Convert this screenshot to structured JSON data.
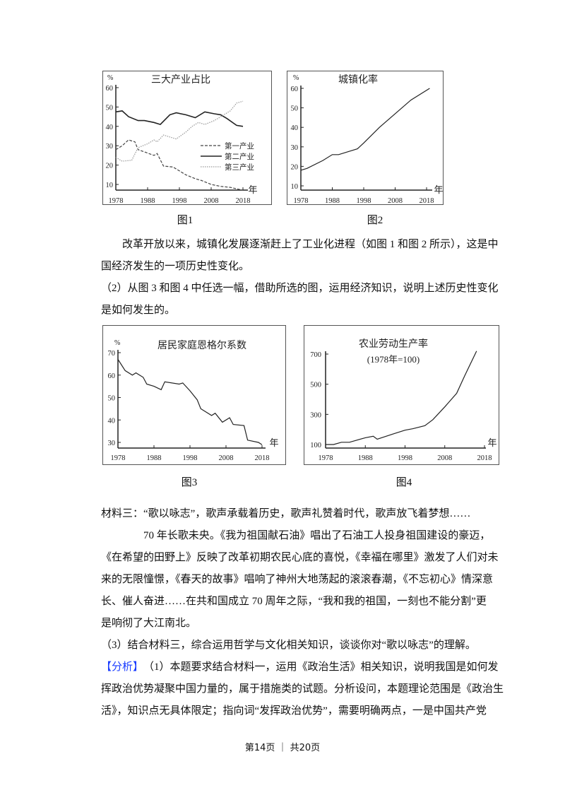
{
  "chart_data": [
    {
      "type": "line",
      "title": "三大产业占比",
      "ylabel": "%",
      "xlabel": "年",
      "xticks": [
        1978,
        1988,
        1998,
        2008,
        2018
      ],
      "yticks": [
        10,
        20,
        30,
        40,
        50,
        60
      ],
      "xlim": [
        1978,
        2018
      ],
      "ylim": [
        10,
        60
      ],
      "legend": "right",
      "series": [
        {
          "name": "第一产业",
          "style": "dashed",
          "color": "#444444",
          "x": [
            1978,
            1980,
            1982,
            1984,
            1985,
            1990,
            1991,
            1993,
            1996,
            1998,
            2000,
            2003,
            2005,
            2008,
            2011,
            2014,
            2018
          ],
          "y": [
            28,
            30,
            33,
            32,
            28,
            25,
            26,
            19.5,
            19,
            17,
            15,
            13,
            12,
            10,
            9,
            8.5,
            7
          ]
        },
        {
          "name": "第二产业",
          "style": "solid",
          "color": "#222222",
          "x": [
            1978,
            1980,
            1982,
            1985,
            1987,
            1990,
            1992,
            1995,
            1997,
            2000,
            2003,
            2006,
            2009,
            2011,
            2013,
            2016,
            2018
          ],
          "y": [
            47.5,
            48,
            45,
            43,
            43,
            42,
            41,
            46,
            47,
            46,
            44.5,
            47.5,
            46.5,
            46,
            44,
            40.5,
            40
          ]
        },
        {
          "name": "第三产业",
          "style": "dotted",
          "color": "#999999",
          "x": [
            1978,
            1980,
            1983,
            1985,
            1988,
            1990,
            1991,
            1993,
            1997,
            2000,
            2002,
            2004,
            2006,
            2009,
            2012,
            2014,
            2016,
            2018
          ],
          "y": [
            24,
            22,
            22.5,
            29,
            31,
            33,
            32,
            35.5,
            33.5,
            37,
            40,
            42,
            41,
            43,
            46,
            48,
            52,
            53
          ]
        }
      ]
    },
    {
      "type": "line",
      "title": "城镇化率",
      "ylabel": "%",
      "xlabel": "年",
      "xticks": [
        1978,
        1988,
        1998,
        2008,
        2018
      ],
      "yticks": [
        10,
        20,
        30,
        40,
        50,
        60
      ],
      "xlim": [
        1978,
        2018
      ],
      "ylim": [
        10,
        60
      ],
      "series": [
        {
          "color": "#222222",
          "x": [
            1978,
            1980,
            1985,
            1988,
            1990,
            1994,
            1996,
            1998,
            2003,
            2008,
            2013,
            2019
          ],
          "y": [
            18,
            19,
            23,
            26,
            26,
            28,
            29,
            32,
            40,
            47,
            54,
            60
          ]
        }
      ]
    },
    {
      "type": "line",
      "title": "居民家庭恩格尔系数",
      "ylabel": "%",
      "xlabel": "年",
      "xticks": [
        1978,
        1988,
        1998,
        2008,
        2018
      ],
      "yticks": [
        30,
        40,
        50,
        60,
        70
      ],
      "xlim": [
        1978,
        2018
      ],
      "ylim": [
        30,
        70
      ],
      "series": [
        {
          "color": "#222222",
          "x": [
            1978,
            1980,
            1982,
            1983,
            1985,
            1986,
            1988,
            1990,
            1991,
            1995,
            1996,
            1998,
            2000,
            2001,
            2004,
            2005,
            2007,
            2009,
            2010,
            2013,
            2014,
            2017,
            2018
          ],
          "y": [
            67,
            62,
            60,
            61,
            59,
            56,
            55,
            53.5,
            57,
            56,
            56.5,
            53,
            49,
            45,
            42,
            43,
            39,
            41,
            38,
            37.5,
            31,
            30,
            29
          ]
        }
      ]
    },
    {
      "type": "line",
      "title": "农业劳动生产率",
      "subtitle": "(1978年=100)",
      "xlabel": "年",
      "xticks": [
        1978,
        1988,
        1998,
        2008,
        2018
      ],
      "yticks": [
        100,
        300,
        500,
        700
      ],
      "xlim": [
        1978,
        2018
      ],
      "ylim": [
        100,
        700
      ],
      "series": [
        {
          "color": "#222222",
          "x": [
            1978,
            1980,
            1982,
            1984,
            1988,
            1990,
            1991,
            1995,
            1998,
            2000,
            2003,
            2005,
            2008,
            2011,
            2013,
            2016
          ],
          "y": [
            100,
            100,
            115,
            115,
            145,
            155,
            135,
            170,
            195,
            205,
            225,
            265,
            350,
            440,
            555,
            720
          ]
        }
      ]
    }
  ],
  "figures": {
    "fig1": "图1",
    "fig2": "图2",
    "fig3": "图3",
    "fig4": "图4"
  },
  "text": {
    "p1": [
      "改革开放以来，城镇化发展逐渐赶上了工业化进程（如图 1 和图 2 所示），这是中",
      "国经济发生的一项历史性变化。"
    ],
    "q2": [
      "（2）从图 3 和图 4 中任选一幅，借助所选的图，运用经济知识，说明上述历史性变化",
      "是如何发生的。"
    ],
    "m3_head": "材料三：“歌以咏志”，歌声承载着历史，歌声礼赞着时代，歌声放飞着梦想……",
    "m3": [
      "70 年长歌未央。《我为祖国献石油》唱出了石油工人投身祖国建设的豪迈，",
      "《在希望的田野上》反映了改革初期农民心底的喜悦，《幸福在哪里》激发了人们对未",
      "来的无限憧憬，《春天的故事》唱响了神州大地荡起的滚滚春潮，《不忘初心》情深意",
      "长、催人奋进……在共和国成立 70 周年之际，“我和我的祖国，一刻也不能分割”更",
      "是响彻了大江南北。"
    ],
    "q3": "（3）结合材料三，综合运用哲学与文化相关知识，谈谈你对“歌以咏志”的理解。",
    "analysis_tag": "【分析】",
    "analysis_first": "（1）本题要求结合材料一，运用《政治生活》相关知识，说明我国是如何发",
    "analysis": [
      "挥政治优势凝聚中国力量的，属于措施类的试题。分析设问，本题理论范围是《政治生",
      "活》，知识点无具体限定；指向词“发挥政治优势”，需要明确两点，一是中国共产党"
    ]
  },
  "footer": "第14页 ｜ 共20页",
  "colors": {
    "tag": "#1a3cff"
  }
}
